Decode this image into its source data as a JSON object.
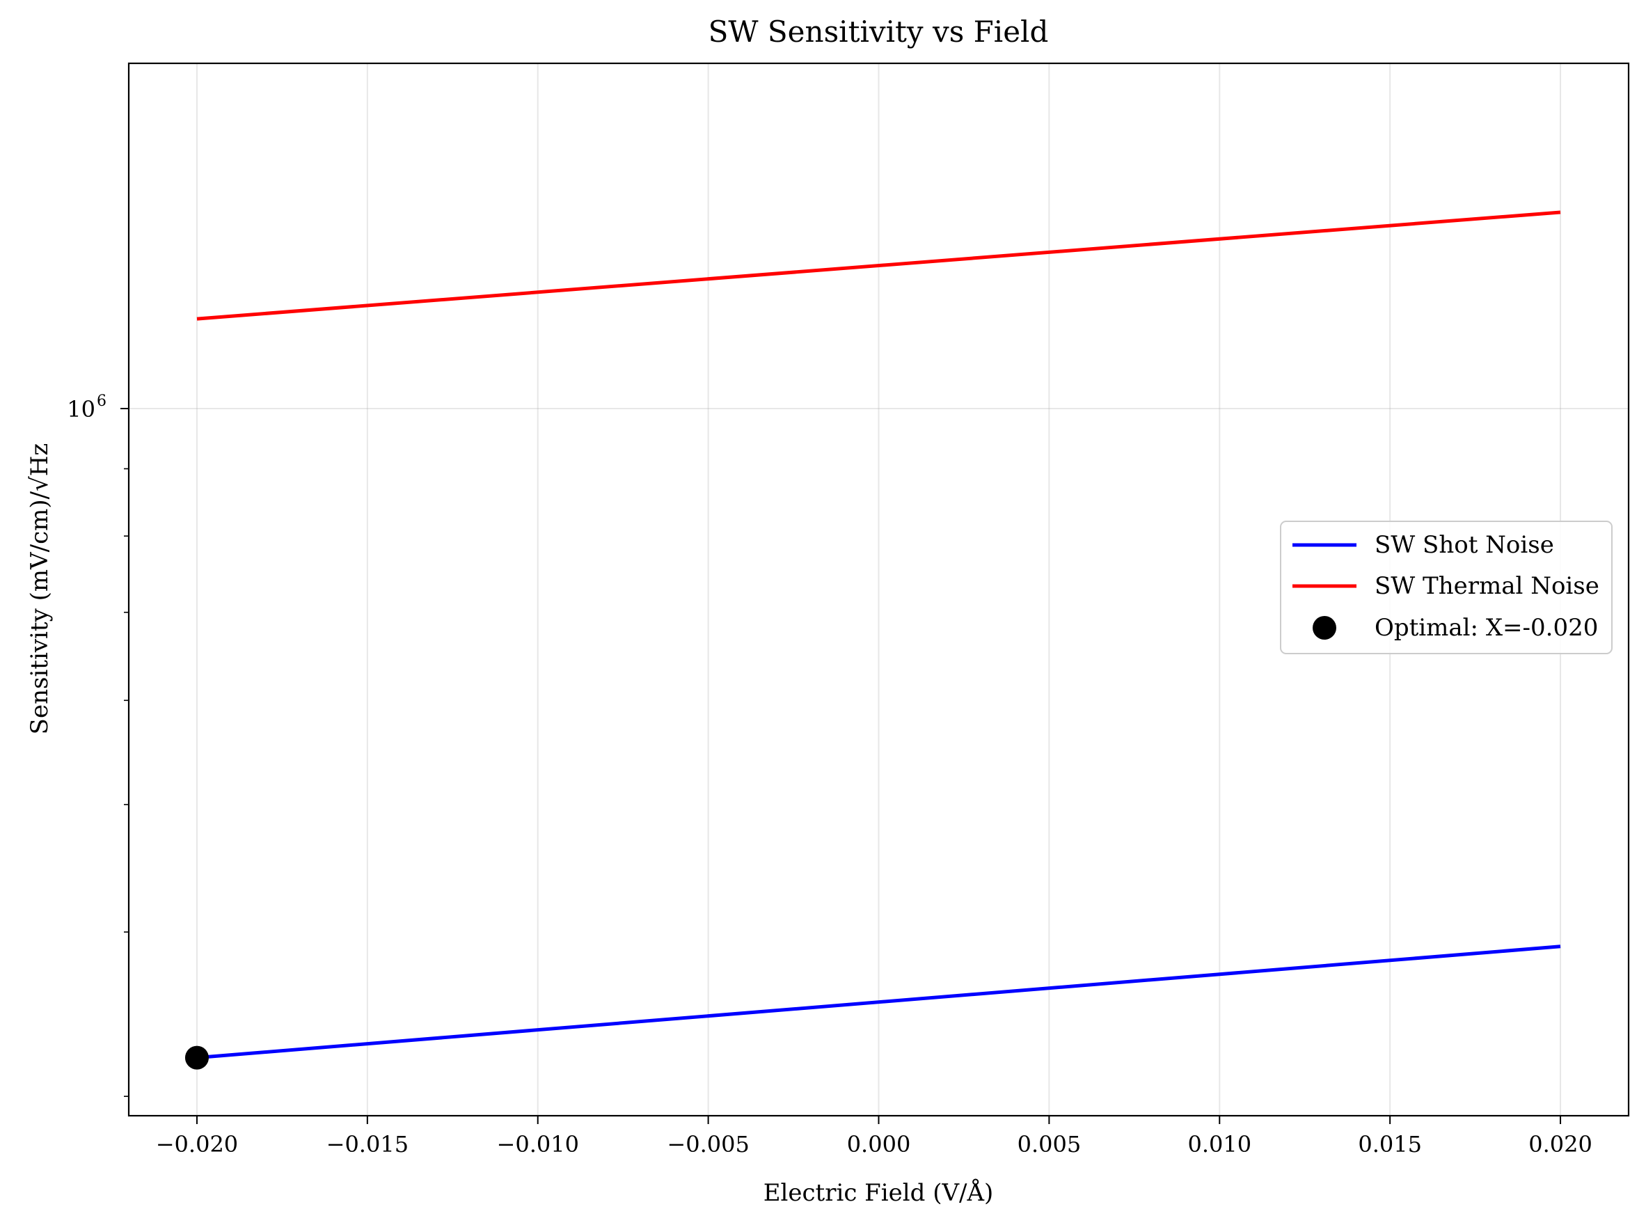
{
  "chart_data": {
    "type": "line",
    "title": "SW Sensitivity vs Field",
    "xlabel": "Electric Field (V/Å)",
    "ylabel": "Sensitivity (mV/cm)/√Hz",
    "xlim": [
      -0.022,
      0.022
    ],
    "ylim": [
      290000,
      1830000
    ],
    "yscale": "log",
    "grid": true,
    "x_ticks": [
      -0.02,
      -0.015,
      -0.01,
      -0.005,
      0.0,
      0.005,
      0.01,
      0.015,
      0.02
    ],
    "x_tick_labels": [
      "−0.020",
      "−0.015",
      "−0.010",
      "−0.005",
      "0.000",
      "0.005",
      "0.010",
      "0.015",
      "0.020"
    ],
    "y_major_ticks": [
      1000000
    ],
    "y_major_tick_label_base": "10",
    "y_major_tick_label_exp": "6",
    "y_minor_ticks": [
      300000,
      400000,
      500000,
      600000,
      700000,
      800000,
      900000
    ],
    "legend_position": "center-right",
    "series": [
      {
        "name": "SW Shot Noise",
        "color": "#0000ff",
        "x": [
          -0.02,
          0.02
        ],
        "y": [
          321000,
          390000
        ]
      },
      {
        "name": "SW Thermal Noise",
        "color": "#ff0000",
        "x": [
          -0.02,
          0.02
        ],
        "y": [
          1170000,
          1410000
        ]
      }
    ],
    "markers": [
      {
        "name": "Optimal: X=-0.020",
        "color": "#000000",
        "x": -0.02,
        "y": 321000
      }
    ]
  }
}
